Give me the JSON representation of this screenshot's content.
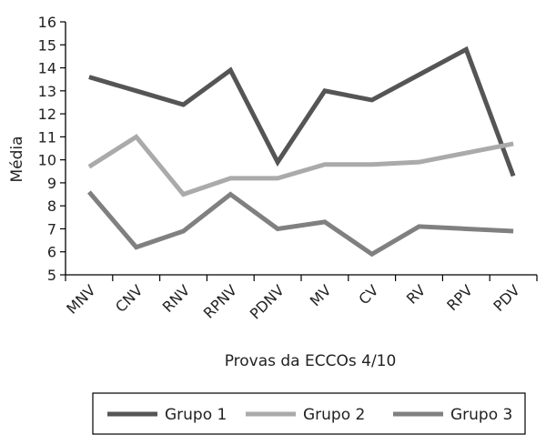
{
  "chart_data": {
    "type": "line",
    "title": "",
    "xlabel": "Provas da ECCOs 4/10",
    "ylabel": "Média",
    "categories": [
      "MNV",
      "CNV",
      "RNV",
      "RPNV",
      "PDNV",
      "MV",
      "CV",
      "RV",
      "RPV",
      "PDV"
    ],
    "ylim": [
      5,
      16
    ],
    "yticks": [
      5,
      6,
      7,
      8,
      9,
      10,
      11,
      12,
      13,
      14,
      15,
      16
    ],
    "grid": false,
    "legend_position": "bottom",
    "series": [
      {
        "name": "Grupo 1",
        "color": "#555555",
        "values": [
          13.6,
          13.0,
          12.4,
          13.9,
          9.9,
          13.0,
          12.6,
          13.7,
          14.8,
          9.3
        ]
      },
      {
        "name": "Grupo 2",
        "color": "#aaaaaa",
        "values": [
          9.7,
          11.0,
          8.5,
          9.2,
          9.2,
          9.8,
          9.8,
          9.9,
          10.3,
          10.7
        ]
      },
      {
        "name": "Grupo 3",
        "color": "#808080",
        "values": [
          8.6,
          6.2,
          6.9,
          8.5,
          7.0,
          7.3,
          5.9,
          7.1,
          7.0,
          6.9
        ]
      }
    ]
  }
}
